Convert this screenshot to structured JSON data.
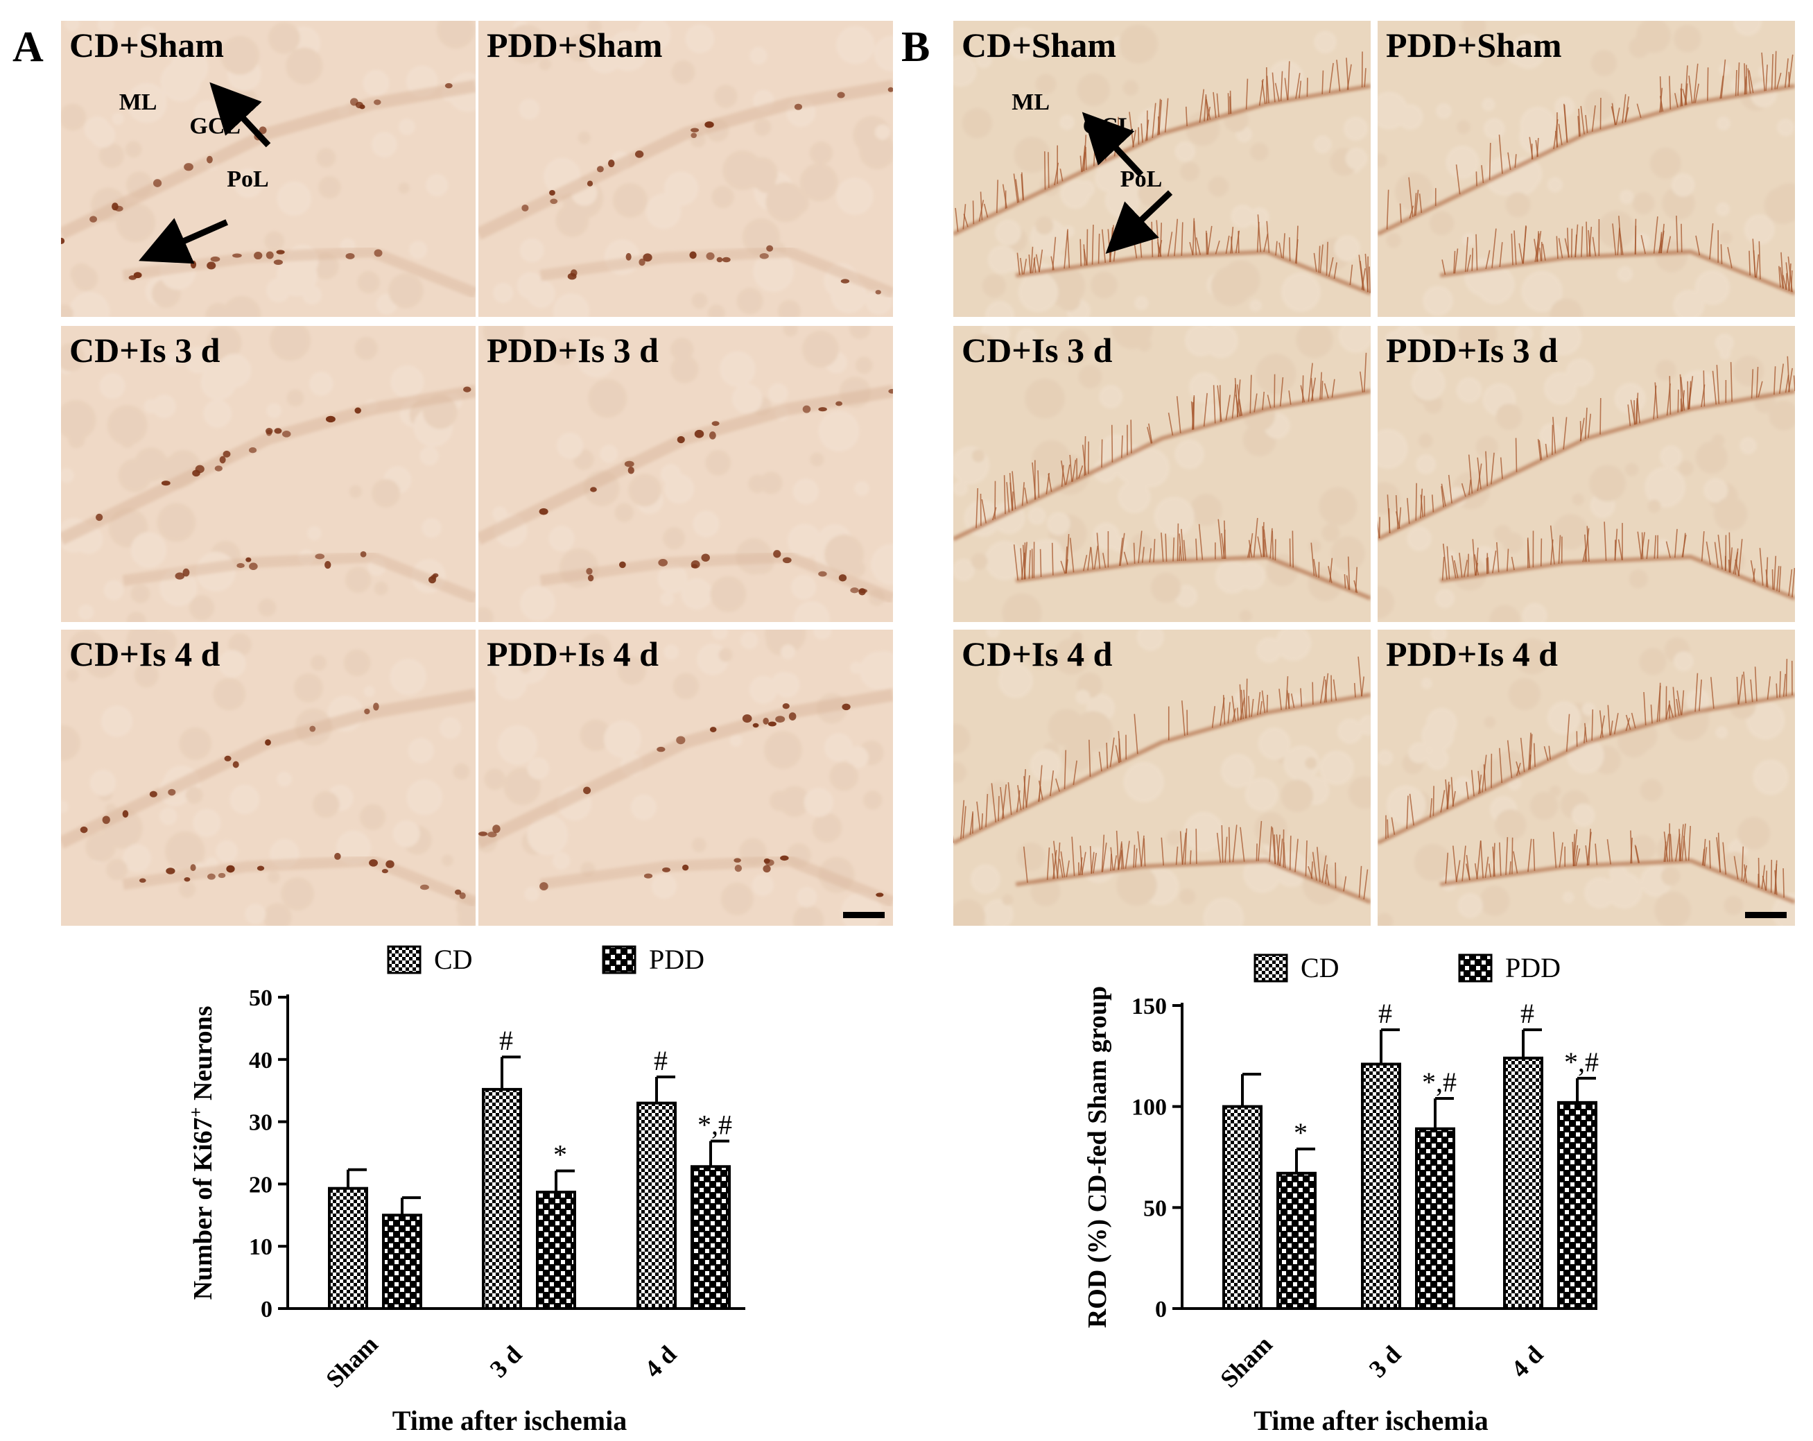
{
  "panels": [
    {
      "letter": "A",
      "micrographs": [
        {
          "label": "CD+Sham",
          "stain": "ki67",
          "annotations": {
            "layers": [
              "ML",
              "GCL",
              "PoL"
            ],
            "arrows": 2
          }
        },
        {
          "label": "PDD+Sham",
          "stain": "ki67"
        },
        {
          "label": "CD+Is 3 d",
          "stain": "ki67"
        },
        {
          "label": "PDD+Is 3 d",
          "stain": "ki67"
        },
        {
          "label": "CD+Is 4 d",
          "stain": "ki67"
        },
        {
          "label": "PDD+Is 4 d",
          "stain": "ki67",
          "scale_bar": true
        }
      ]
    },
    {
      "letter": "B",
      "micrographs": [
        {
          "label": "CD+Sham",
          "stain": "dcx",
          "annotations": {
            "layers": [
              "ML",
              "GCL",
              "PoL"
            ],
            "arrows": 2
          }
        },
        {
          "label": "PDD+Sham",
          "stain": "dcx"
        },
        {
          "label": "CD+Is 3 d",
          "stain": "dcx"
        },
        {
          "label": "PDD+Is 3 d",
          "stain": "dcx"
        },
        {
          "label": "CD+Is 4 d",
          "stain": "dcx"
        },
        {
          "label": "PDD+Is 4 d",
          "stain": "dcx",
          "scale_bar": true
        }
      ]
    }
  ],
  "colors": {
    "ki67_tissue": "#efd9c6",
    "dcx_tissue": "#ead7bf",
    "stain": "#a5542a",
    "cell": "#7a3418",
    "bar_fill": "#ffffff",
    "bar_pattern": "#000000"
  },
  "chart_data": [
    {
      "type": "bar",
      "categories": [
        "Sham",
        "3 d",
        "4 d"
      ],
      "series": [
        {
          "name": "CD",
          "values": [
            19.3,
            35.2,
            33.0
          ],
          "errors": [
            3.0,
            5.2,
            4.2
          ],
          "annotations": [
            "",
            "#",
            "#"
          ],
          "pattern": "coarse-checker"
        },
        {
          "name": "PDD",
          "values": [
            15.0,
            18.7,
            22.8
          ],
          "errors": [
            2.8,
            3.4,
            4.1
          ],
          "annotations": [
            "",
            "*",
            "*,#"
          ],
          "pattern": "fine-checker"
        }
      ],
      "ylabel": "Number of Ki67+ Neurons",
      "xlabel": "Time after ischemia",
      "ylim": [
        0,
        50
      ],
      "yticks": [
        0,
        10,
        20,
        30,
        40,
        50
      ],
      "legend_position": "top",
      "grid": false
    },
    {
      "type": "bar",
      "categories": [
        "Sham",
        "3 d",
        "4 d"
      ],
      "series": [
        {
          "name": "CD",
          "values": [
            100,
            121,
            124
          ],
          "errors": [
            16,
            17,
            14
          ],
          "annotations": [
            "",
            "#",
            "#"
          ],
          "pattern": "coarse-checker"
        },
        {
          "name": "PDD",
          "values": [
            67,
            89,
            102
          ],
          "errors": [
            12,
            15,
            12
          ],
          "annotations": [
            "*",
            "*,#",
            "*,#"
          ],
          "pattern": "fine-checker"
        }
      ],
      "ylabel": "ROD (%) CD-fed Sham group",
      "xlabel": "Time after ischemia",
      "ylim": [
        0,
        150
      ],
      "yticks": [
        0,
        50,
        100,
        150
      ],
      "legend_position": "top",
      "grid": false
    }
  ]
}
